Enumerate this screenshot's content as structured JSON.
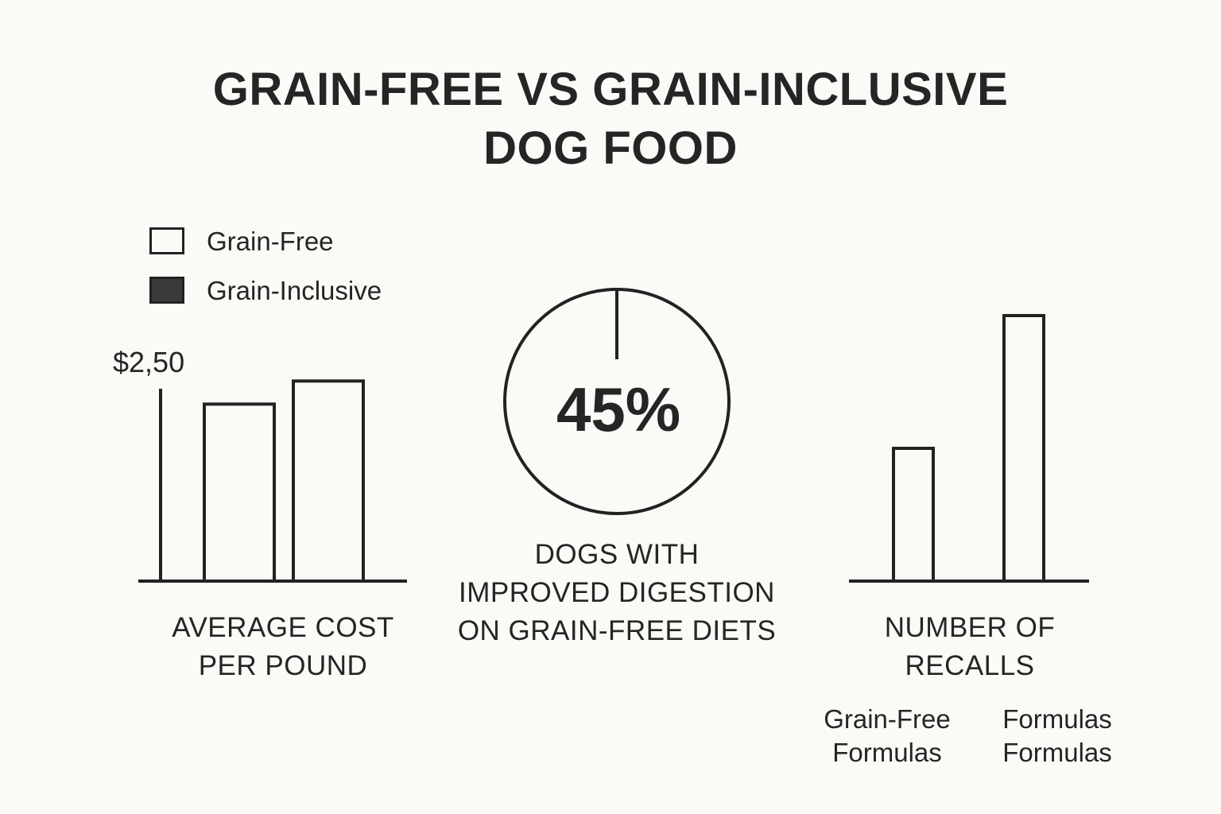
{
  "title": {
    "line1": "GRAIN-FREE VS GRAIN-INCLUSIVE",
    "line2": "DOG FOOD"
  },
  "legend": [
    {
      "label": "Grain-Free",
      "color": "#fbfaf7"
    },
    {
      "label": "Grain-Inclusive",
      "color": "#3a3a3a"
    }
  ],
  "chart_data": [
    {
      "type": "bar",
      "title": "AVERAGE COST PER POUND",
      "title_lines": [
        "AVERAGE COST",
        "PER POUND"
      ],
      "y_tick_label": "$2,50",
      "categories": [
        "Grain-Free",
        "Grain-Inclusive"
      ],
      "values": [
        2.3,
        2.6
      ],
      "ylim": [
        0,
        2.5
      ]
    },
    {
      "type": "pie",
      "value_label": "45%",
      "value": 45,
      "title_lines": [
        "DOGS WITH",
        "IMPROVED DIGESTION",
        "ON GRAIN-FREE DIETS"
      ]
    },
    {
      "type": "bar",
      "title": "NUMBER OF RECALLS",
      "title_lines": [
        "NUMBER OF",
        "RECALLS"
      ],
      "categories": [
        {
          "line1": "Grain-Free",
          "line2": "Formulas"
        },
        {
          "line1": "Formulas",
          "line2": "Formulas"
        }
      ],
      "values": [
        1,
        2
      ]
    }
  ],
  "colors": {
    "ink": "#222222",
    "background": "#fbfaf7"
  }
}
